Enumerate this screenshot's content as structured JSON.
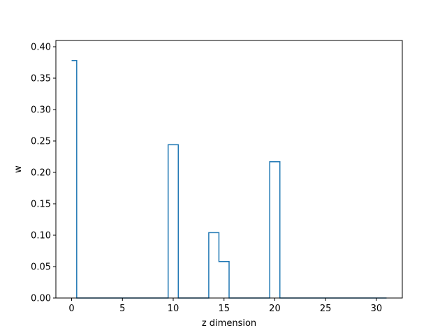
{
  "chart_data": {
    "type": "line",
    "style": "step",
    "title": "",
    "xlabel": "z dimension",
    "ylabel": "w",
    "xlim": [
      -1.55,
      32.55
    ],
    "ylim": [
      0.0,
      0.41
    ],
    "x_ticks": [
      0,
      5,
      10,
      15,
      20,
      25,
      30
    ],
    "x_tick_labels": [
      "0",
      "5",
      "10",
      "15",
      "20",
      "25",
      "30"
    ],
    "y_ticks": [
      0.0,
      0.05,
      0.1,
      0.15,
      0.2,
      0.25,
      0.3,
      0.35,
      0.4
    ],
    "y_tick_labels": [
      "0.00",
      "0.05",
      "0.10",
      "0.15",
      "0.20",
      "0.25",
      "0.30",
      "0.35",
      "0.40"
    ],
    "grid": false,
    "series": [
      {
        "color": "#1f77b4",
        "x": [
          0,
          1,
          2,
          3,
          4,
          5,
          6,
          7,
          8,
          9,
          10,
          11,
          12,
          13,
          14,
          15,
          16,
          17,
          18,
          19,
          20,
          21,
          22,
          23,
          24,
          25,
          26,
          27,
          28,
          29,
          30,
          31
        ],
        "y": [
          0.378,
          0,
          0,
          0,
          0,
          0,
          0,
          0,
          0,
          0,
          0.244,
          0,
          0,
          0,
          0.104,
          0.058,
          0,
          0,
          0,
          0,
          0.217,
          0,
          0,
          0,
          0,
          0,
          0,
          0,
          0,
          0,
          0,
          0
        ]
      }
    ]
  }
}
